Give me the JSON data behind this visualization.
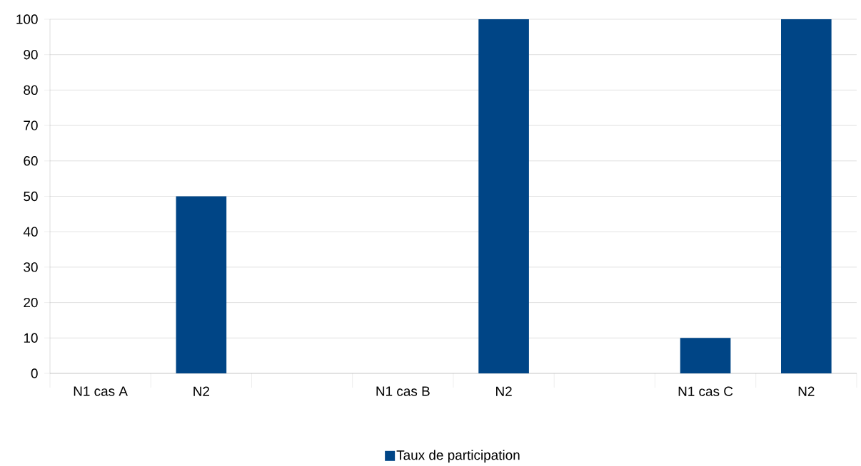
{
  "chart_data": {
    "type": "bar",
    "categories": [
      "N1 cas A",
      "N2",
      null,
      "N1 cas B",
      "N2",
      null,
      "N1 cas C",
      "N2"
    ],
    "series": [
      {
        "name": "Taux de participation",
        "color": "#004586",
        "values": [
          0,
          50,
          null,
          0,
          100,
          null,
          10,
          100
        ]
      }
    ],
    "ylim": [
      0,
      100
    ],
    "yticks": [
      0,
      10,
      20,
      30,
      40,
      50,
      60,
      70,
      80,
      90,
      100
    ],
    "grid": "y",
    "legend": "bottom"
  }
}
